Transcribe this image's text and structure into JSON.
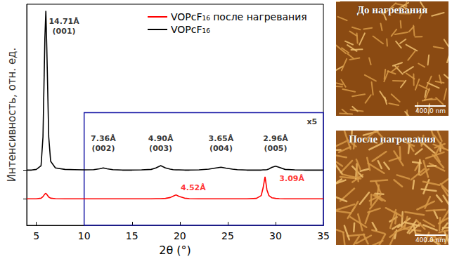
{
  "chart_data": {
    "type": "line",
    "x_label": "2θ (°)",
    "y_label": "Интенсивность, отн. ед.",
    "xlim": [
      4,
      35
    ],
    "xticks": [
      5,
      10,
      15,
      20,
      25,
      30,
      35
    ],
    "ylim": [
      0,
      100
    ],
    "yticks": [
      12,
      25
    ],
    "tick_labels": "x",
    "grid": false,
    "legend": "top-right",
    "x": [
      4,
      4.5,
      5,
      5.5,
      5.7,
      5.9,
      6.0,
      6.1,
      6.3,
      6.5,
      7,
      8,
      9,
      10,
      11,
      11.6,
      12.0,
      12.4,
      13,
      14,
      15,
      16,
      17,
      17.5,
      18.0,
      18.5,
      19,
      19.3,
      19.6,
      19.9,
      20.5,
      21,
      22,
      23,
      23.8,
      24.3,
      24.8,
      25.5,
      26,
      27,
      28,
      28.5,
      28.7,
      28.9,
      29.1,
      29.3,
      29.6,
      30.0,
      30.4,
      31,
      32,
      33,
      34,
      35
    ],
    "series": [
      {
        "name": "VOPcF₁₆ после нагревания",
        "color": "#ff0000",
        "marker": "none",
        "line_style": "solid",
        "values": [
          12,
          12,
          12,
          12.3,
          13,
          14.2,
          14.5,
          14,
          12.8,
          12.3,
          12.1,
          12,
          12,
          12,
          12,
          12,
          12,
          12,
          12,
          12,
          12,
          12,
          12,
          12.1,
          12.1,
          12.2,
          12.6,
          13.2,
          13.8,
          13.1,
          12.3,
          12.1,
          12,
          12,
          12,
          12,
          12,
          12,
          12,
          12,
          12.2,
          13.5,
          17,
          22,
          16,
          13.5,
          12.5,
          12.2,
          12.1,
          12,
          12,
          12,
          12,
          12
        ]
      },
      {
        "name": "VOPcF₁₆",
        "color": "#000000",
        "marker": "none",
        "line_style": "solid",
        "values": [
          25,
          25,
          25.3,
          27,
          40,
          85,
          97,
          80,
          40,
          29,
          26,
          25.3,
          25.2,
          25.1,
          25.2,
          25.6,
          26.0,
          25.6,
          25.2,
          25,
          25,
          25.1,
          25.3,
          26,
          27,
          26,
          25.4,
          25.2,
          25.1,
          25.1,
          25,
          25,
          25.1,
          25.4,
          26,
          26.3,
          25.9,
          25.4,
          25.2,
          25,
          25,
          25,
          25.1,
          25.1,
          25.2,
          25.5,
          26.2,
          26.8,
          26.2,
          25.3,
          25.1,
          25,
          25,
          25
        ]
      }
    ],
    "annotations": [
      {
        "x": 7.9,
        "y": 90,
        "text": [
          "14.71Å",
          "(001)"
        ],
        "color": "#000000"
      },
      {
        "x": 12.0,
        "y": 37,
        "text": [
          "7.36Å",
          "(002)"
        ],
        "color": "#000000"
      },
      {
        "x": 18.0,
        "y": 37,
        "text": [
          "4.90Å",
          "(003)"
        ],
        "color": "#000000"
      },
      {
        "x": 24.3,
        "y": 37,
        "text": [
          "3.65Å",
          "(004)"
        ],
        "color": "#000000"
      },
      {
        "x": 30.0,
        "y": 37,
        "text": [
          "2.96Å",
          "(005)"
        ],
        "color": "#000000"
      },
      {
        "x": 21.4,
        "y": 17,
        "text": [
          "4.52Å"
        ],
        "color": "#ff0000"
      },
      {
        "x": 31.7,
        "y": 21,
        "text": [
          "3.09Å"
        ],
        "color": "#ff0000"
      },
      {
        "x": 33.8,
        "y": 47,
        "text": [
          "x5"
        ],
        "color": "#000000"
      }
    ],
    "inset": {
      "xlim": [
        10,
        35
      ],
      "ylim": [
        0,
        51
      ],
      "color": "#1a1aa6"
    }
  },
  "panels": [
    {
      "title": "До нагревания",
      "scale_bar": "400.0 nm"
    },
    {
      "title": "После нагревания",
      "scale_bar": "400.0 nm"
    }
  ]
}
